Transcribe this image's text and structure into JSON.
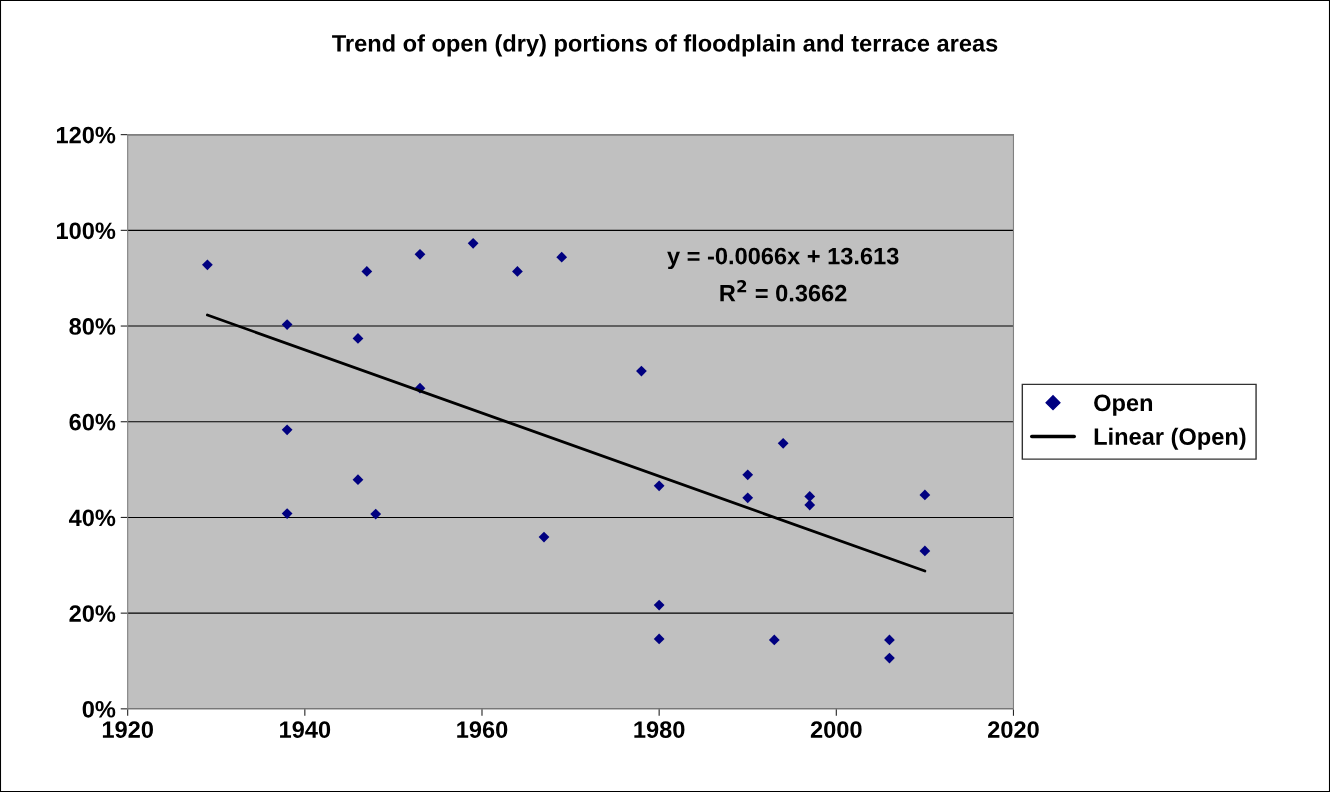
{
  "chart_data": {
    "type": "scatter",
    "title": "Trend of open (dry) portions of floodplain and terrace areas",
    "series": [
      {
        "name": "Open",
        "color": "#000080",
        "marker": "diamond",
        "x": [
          1929,
          1938,
          1938,
          1938,
          1946,
          1946,
          1947,
          1948,
          1953,
          1953,
          1959,
          1964,
          1967,
          1969,
          1978,
          1980,
          1980,
          1980,
          1990,
          1990,
          1993,
          1994,
          1997,
          1997,
          2006,
          2006,
          2010,
          2010
        ],
        "values": [
          92.8,
          80.3,
          58.3,
          40.8,
          77.4,
          47.9,
          91.4,
          40.7,
          95,
          67,
          97.3,
          91.4,
          35.9,
          94.4,
          70.6,
          46.6,
          21.7,
          14.6,
          48.9,
          44.1,
          14.4,
          55.5,
          44.4,
          42.6,
          14.4,
          10.6,
          44.7,
          33.0
        ]
      },
      {
        "name": "Linear (Open)",
        "type": "line",
        "color": "#000000",
        "marker": "none",
        "line_style": "solid",
        "x": [
          1929,
          2010
        ],
        "values": [
          82.3,
          28.8
        ]
      }
    ],
    "annotations": [
      "y = -0.0066x + 13.613",
      "R$^{2}$ = 0.3662"
    ],
    "xlim": [
      1920,
      2020
    ],
    "xticks": [
      1920,
      1940,
      1960,
      1980,
      2000,
      2020
    ],
    "ylim": [
      0,
      120
    ],
    "yticks": [
      {
        "value": 0,
        "label": "0%"
      },
      {
        "value": 20,
        "label": "20%"
      },
      {
        "value": 40,
        "label": "40%"
      },
      {
        "value": 60,
        "label": "60%"
      },
      {
        "value": 80,
        "label": "80%"
      },
      {
        "value": 100,
        "label": "100%"
      },
      {
        "value": 120,
        "label": "120%"
      }
    ],
    "grid": "y",
    "legend": "right"
  }
}
